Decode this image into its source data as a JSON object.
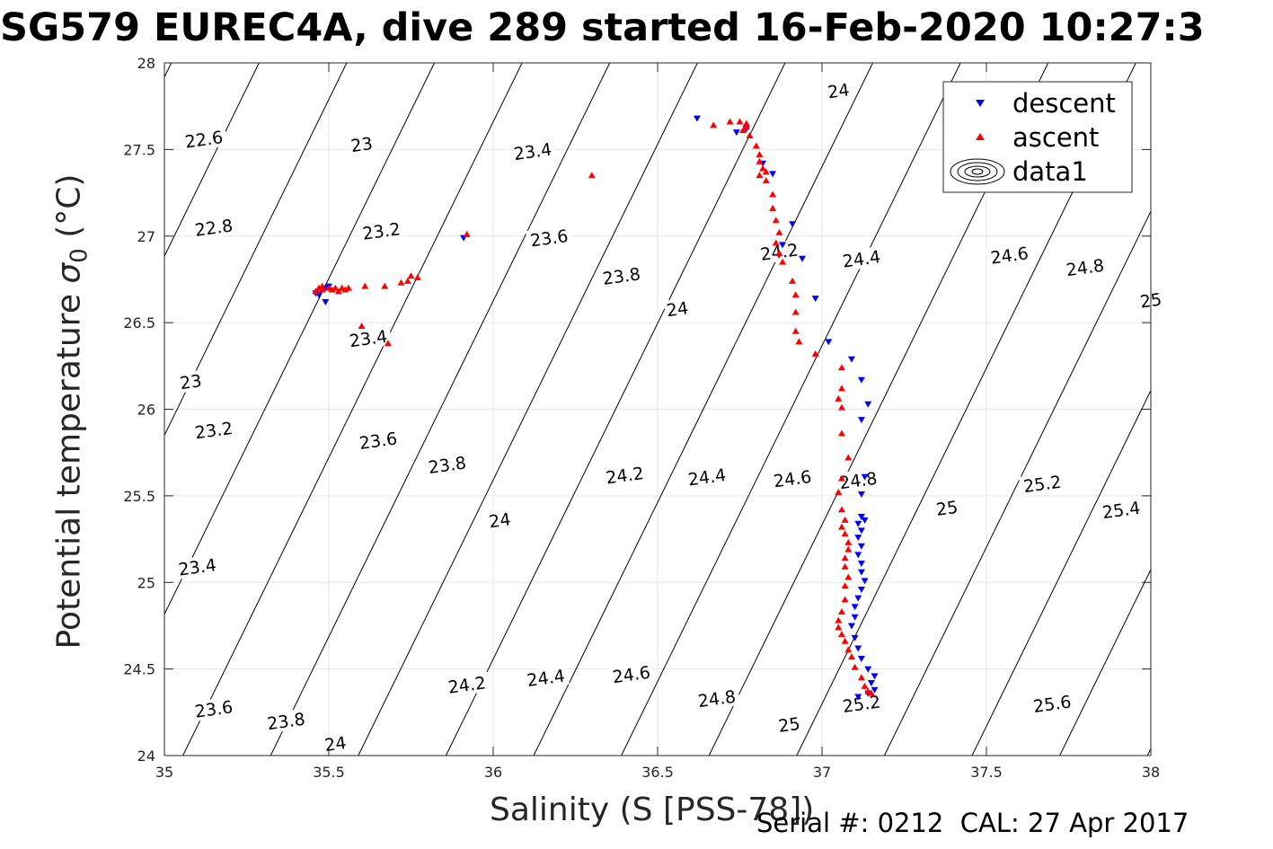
{
  "title": "SG579 EUREC4A, dive 289 started 16-Feb-2020 10:27:3",
  "footer": "Serial #: 0212  CAL: 27 Apr 2017",
  "chart_data": {
    "type": "scatter",
    "title": "SG579 EUREC4A, dive 289 started 16-Feb-2020 10:27:3",
    "xlabel": "Salinity (S [PSS-78])",
    "ylabel_main": "Potential temperature ",
    "ylabel_sigma": "σ",
    "ylabel_sub": "0",
    "ylabel_unit": " (°C)",
    "xlim": [
      35,
      38
    ],
    "ylim": [
      24,
      28
    ],
    "xticks": [
      "35",
      "35.5",
      "36",
      "36.5",
      "37",
      "37.5",
      "38"
    ],
    "yticks": [
      "24",
      "24.5",
      "25",
      "25.5",
      "26",
      "26.5",
      "27",
      "27.5",
      "28"
    ],
    "grid": true,
    "legend_position": "top-right",
    "colors": {
      "descent": "#0000ff",
      "ascent": "#ff0000",
      "contour": "#000000",
      "grid": "#e6e6e6"
    },
    "contours": {
      "levels": [
        22.6,
        22.8,
        23,
        23.2,
        23.4,
        23.6,
        23.8,
        24,
        24.2,
        24.4,
        24.6,
        24.8,
        25,
        25.2,
        25.4,
        25.6
      ],
      "labels": [
        {
          "text": "22.6",
          "s": 35.12,
          "t": 27.56
        },
        {
          "text": "22.8",
          "s": 35.15,
          "t": 27.05
        },
        {
          "text": "23",
          "s": 35.6,
          "t": 27.53
        },
        {
          "text": "23",
          "s": 35.08,
          "t": 26.16
        },
        {
          "text": "23.2",
          "s": 35.66,
          "t": 27.03
        },
        {
          "text": "23.2",
          "s": 35.15,
          "t": 25.88
        },
        {
          "text": "23.4",
          "s": 36.12,
          "t": 27.49
        },
        {
          "text": "23.4",
          "s": 35.62,
          "t": 26.41
        },
        {
          "text": "23.4",
          "s": 35.1,
          "t": 25.09
        },
        {
          "text": "23.6",
          "s": 36.17,
          "t": 26.99
        },
        {
          "text": "23.6",
          "s": 35.65,
          "t": 25.82
        },
        {
          "text": "23.6",
          "s": 35.15,
          "t": 24.27
        },
        {
          "text": "23.8",
          "s": 36.39,
          "t": 26.77
        },
        {
          "text": "23.8",
          "s": 35.86,
          "t": 25.68
        },
        {
          "text": "23.8",
          "s": 35.37,
          "t": 24.2
        },
        {
          "text": "24",
          "s": 37.05,
          "t": 27.84
        },
        {
          "text": "24",
          "s": 36.56,
          "t": 26.58
        },
        {
          "text": "24",
          "s": 36.02,
          "t": 25.36
        },
        {
          "text": "24",
          "s": 35.52,
          "t": 24.07
        },
        {
          "text": "24.2",
          "s": 36.87,
          "t": 26.91
        },
        {
          "text": "24.2",
          "s": 36.4,
          "t": 25.62
        },
        {
          "text": "24.2",
          "s": 35.92,
          "t": 24.41
        },
        {
          "text": "24.4",
          "s": 37.12,
          "t": 26.87
        },
        {
          "text": "24.4",
          "s": 36.65,
          "t": 25.61
        },
        {
          "text": "24.4",
          "s": 36.16,
          "t": 24.45
        },
        {
          "text": "24.6",
          "s": 37.57,
          "t": 26.89
        },
        {
          "text": "24.6",
          "s": 36.91,
          "t": 25.6
        },
        {
          "text": "24.6",
          "s": 36.42,
          "t": 24.47
        },
        {
          "text": "24.8",
          "s": 37.8,
          "t": 26.82
        },
        {
          "text": "24.8",
          "s": 37.11,
          "t": 25.59
        },
        {
          "text": "24.8",
          "s": 36.68,
          "t": 24.33
        },
        {
          "text": "25",
          "s": 38.0,
          "t": 26.63
        },
        {
          "text": "25",
          "s": 37.38,
          "t": 25.43
        },
        {
          "text": "25",
          "s": 36.9,
          "t": 24.18
        },
        {
          "text": "25.2",
          "s": 37.67,
          "t": 25.57
        },
        {
          "text": "25.2",
          "s": 37.12,
          "t": 24.3
        },
        {
          "text": "25.4",
          "s": 37.91,
          "t": 25.42
        },
        {
          "text": "25.6",
          "s": 37.7,
          "t": 24.3
        }
      ]
    },
    "series": [
      {
        "name": "descent",
        "marker": "triangle-down",
        "points": [
          [
            36.62,
            27.68
          ],
          [
            36.74,
            27.6
          ],
          [
            36.77,
            27.62
          ],
          [
            36.82,
            27.42
          ],
          [
            36.85,
            27.36
          ],
          [
            36.91,
            27.07
          ],
          [
            36.88,
            26.95
          ],
          [
            36.94,
            26.87
          ],
          [
            36.98,
            26.64
          ],
          [
            37.02,
            26.39
          ],
          [
            37.09,
            26.29
          ],
          [
            37.12,
            26.17
          ],
          [
            37.14,
            26.03
          ],
          [
            37.12,
            25.94
          ],
          [
            37.13,
            25.61
          ],
          [
            37.12,
            25.51
          ],
          [
            37.12,
            25.38
          ],
          [
            37.13,
            25.36
          ],
          [
            37.11,
            25.34
          ],
          [
            37.12,
            25.3
          ],
          [
            37.11,
            25.26
          ],
          [
            37.12,
            25.21
          ],
          [
            37.11,
            25.16
          ],
          [
            37.12,
            25.11
          ],
          [
            37.12,
            25.06
          ],
          [
            37.13,
            25.01
          ],
          [
            37.12,
            24.96
          ],
          [
            37.11,
            24.91
          ],
          [
            37.1,
            24.86
          ],
          [
            37.1,
            24.8
          ],
          [
            37.09,
            24.75
          ],
          [
            37.1,
            24.68
          ],
          [
            37.11,
            24.62
          ],
          [
            37.12,
            24.56
          ],
          [
            37.14,
            24.5
          ],
          [
            37.16,
            24.46
          ],
          [
            37.15,
            24.42
          ],
          [
            37.16,
            24.38
          ],
          [
            37.14,
            24.36
          ],
          [
            37.11,
            24.34
          ],
          [
            35.91,
            26.99
          ],
          [
            35.49,
            26.62
          ],
          [
            35.47,
            26.66
          ],
          [
            35.46,
            26.67
          ],
          [
            35.49,
            26.7
          ],
          [
            35.5,
            26.71
          ]
        ]
      },
      {
        "name": "ascent",
        "marker": "triangle-up",
        "points": [
          [
            36.67,
            27.64
          ],
          [
            36.72,
            27.66
          ],
          [
            36.75,
            27.66
          ],
          [
            36.77,
            27.65
          ],
          [
            36.77,
            27.63
          ],
          [
            36.76,
            27.61
          ],
          [
            36.78,
            27.58
          ],
          [
            36.8,
            27.52
          ],
          [
            36.81,
            27.47
          ],
          [
            36.81,
            27.43
          ],
          [
            36.82,
            27.39
          ],
          [
            36.83,
            27.37
          ],
          [
            36.81,
            27.35
          ],
          [
            36.83,
            27.32
          ],
          [
            36.85,
            27.24
          ],
          [
            36.85,
            27.16
          ],
          [
            36.86,
            27.09
          ],
          [
            36.87,
            27.02
          ],
          [
            36.86,
            26.96
          ],
          [
            36.87,
            26.9
          ],
          [
            36.88,
            26.85
          ],
          [
            36.91,
            26.74
          ],
          [
            36.92,
            26.66
          ],
          [
            36.92,
            26.56
          ],
          [
            36.92,
            26.45
          ],
          [
            36.93,
            26.39
          ],
          [
            36.98,
            26.32
          ],
          [
            37.06,
            26.24
          ],
          [
            37.06,
            26.12
          ],
          [
            37.05,
            26.06
          ],
          [
            37.06,
            26.01
          ],
          [
            37.06,
            25.86
          ],
          [
            37.08,
            25.72
          ],
          [
            37.06,
            25.6
          ],
          [
            37.05,
            25.52
          ],
          [
            37.06,
            25.42
          ],
          [
            37.07,
            25.36
          ],
          [
            37.06,
            25.32
          ],
          [
            37.07,
            25.28
          ],
          [
            37.08,
            25.23
          ],
          [
            37.08,
            25.19
          ],
          [
            37.07,
            25.14
          ],
          [
            37.07,
            25.09
          ],
          [
            37.08,
            25.03
          ],
          [
            37.07,
            24.98
          ],
          [
            37.07,
            24.9
          ],
          [
            37.06,
            24.83
          ],
          [
            37.05,
            24.78
          ],
          [
            37.05,
            24.74
          ],
          [
            37.06,
            24.7
          ],
          [
            37.07,
            24.66
          ],
          [
            37.08,
            24.61
          ],
          [
            37.09,
            24.57
          ],
          [
            37.1,
            24.51
          ],
          [
            37.12,
            24.45
          ],
          [
            37.13,
            24.4
          ],
          [
            37.14,
            24.37
          ],
          [
            37.15,
            24.36
          ],
          [
            36.3,
            27.35
          ],
          [
            35.92,
            27.01
          ],
          [
            35.77,
            26.76
          ],
          [
            35.75,
            26.77
          ],
          [
            35.74,
            26.74
          ],
          [
            35.72,
            26.73
          ],
          [
            35.67,
            26.71
          ],
          [
            35.61,
            26.71
          ],
          [
            35.55,
            26.69
          ],
          [
            35.53,
            26.68
          ],
          [
            35.51,
            26.69
          ],
          [
            35.48,
            26.69
          ],
          [
            35.46,
            26.68
          ],
          [
            35.47,
            26.7
          ],
          [
            35.48,
            26.71
          ],
          [
            35.5,
            26.7
          ],
          [
            35.52,
            26.7
          ],
          [
            35.54,
            26.7
          ],
          [
            35.56,
            26.7
          ],
          [
            35.6,
            26.48
          ],
          [
            35.68,
            26.38
          ]
        ]
      }
    ],
    "legend": {
      "entries": [
        "descent",
        "ascent",
        "data1"
      ]
    }
  }
}
